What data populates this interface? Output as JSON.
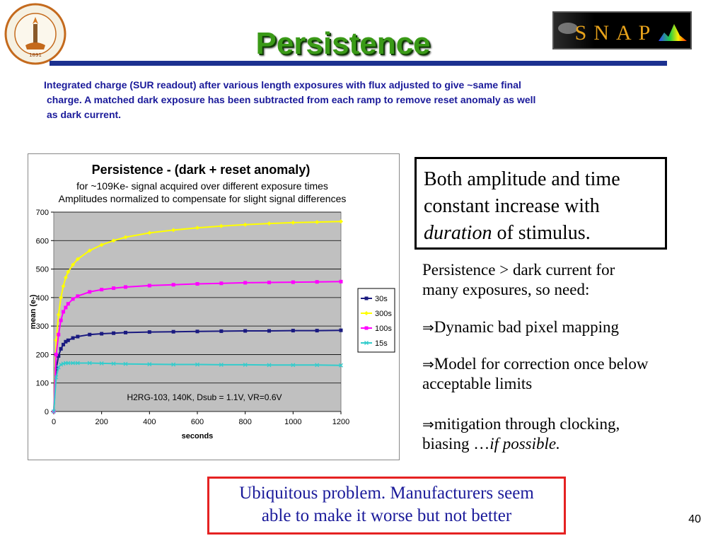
{
  "slide": {
    "title": "Persistence",
    "intro": [
      "Integrated charge (SUR readout) after various length exposures with flux adjusted to give ~same final",
      "charge.  A matched dark exposure has been subtracted from each ramp to remove reset anomaly as well",
      "as dark current."
    ],
    "logo_right_text": "SNAP",
    "callout": {
      "line1": "Both amplitude and time",
      "line2": "constant increase with",
      "line3_italic": "duration",
      "line3_rest": " of stimulus."
    },
    "note_lines": [
      "Persistence > dark current for",
      "many exposures, so need:"
    ],
    "bullet_symbol": "⇒",
    "bullets": [
      [
        "Dynamic bad pixel mapping"
      ],
      [
        "Model for correction once below",
        "acceptable limits"
      ],
      [
        "mitigation through clocking,",
        "biasing …",
        "if possible."
      ]
    ],
    "bottom_box": [
      "Ubiquitous problem.  Manufacturers seem",
      "able to make it worse but not better"
    ],
    "page_number": "40",
    "colors": {
      "title": "#3a9a17",
      "title_bar": "#1c3190",
      "intro": "#1a1a9a",
      "box_border": "#e52222"
    },
    "icons": [
      "caltech-seal-icon",
      "snap-logo-icon"
    ]
  },
  "chart_data": {
    "type": "line",
    "title": "Persistence - (dark + reset anomaly)",
    "subtitle": [
      "for ~109Ke- signal acquired over different exposure times",
      "Amplitudes normalized to compensate for slight signal differences"
    ],
    "xlabel": "seconds",
    "ylabel": "mean (e-)",
    "xlim": [
      0,
      1200
    ],
    "ylim": [
      0,
      700
    ],
    "xticks": [
      0,
      200,
      400,
      600,
      800,
      1000,
      1200
    ],
    "yticks": [
      0,
      100,
      200,
      300,
      400,
      500,
      600,
      700
    ],
    "grid": true,
    "legend_position": "right",
    "annotation": "H2RG-103, 140K, Dsub = 1.1V, VR=0.6V",
    "x": [
      0,
      10,
      20,
      30,
      40,
      50,
      60,
      80,
      100,
      150,
      200,
      250,
      300,
      400,
      500,
      600,
      700,
      800,
      900,
      1000,
      1100,
      1200
    ],
    "series": [
      {
        "name": "30s",
        "color": "#1a1a80",
        "marker": "square",
        "values": [
          0,
          150,
          195,
          220,
          235,
          245,
          250,
          258,
          263,
          270,
          273,
          275,
          277,
          279,
          280,
          281,
          282,
          283,
          283,
          284,
          284,
          285
        ]
      },
      {
        "name": "300s",
        "color": "#ffff00",
        "marker": "diamond",
        "values": [
          0,
          250,
          340,
          400,
          440,
          470,
          490,
          515,
          535,
          565,
          585,
          600,
          612,
          627,
          637,
          645,
          651,
          656,
          660,
          663,
          665,
          667
        ]
      },
      {
        "name": "100s",
        "color": "#ff00ff",
        "marker": "square",
        "values": [
          0,
          200,
          270,
          320,
          350,
          365,
          378,
          395,
          405,
          420,
          428,
          433,
          437,
          442,
          445,
          448,
          450,
          452,
          453,
          454,
          455,
          456
        ]
      },
      {
        "name": "15s",
        "color": "#33cccc",
        "marker": "x",
        "values": [
          0,
          120,
          155,
          165,
          168,
          170,
          170,
          170,
          170,
          170,
          169,
          168,
          167,
          166,
          165,
          165,
          164,
          164,
          163,
          163,
          163,
          162
        ]
      }
    ]
  }
}
